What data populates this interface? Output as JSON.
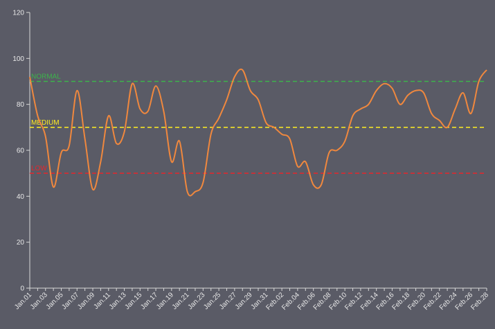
{
  "chart_data": {
    "type": "line",
    "categories": [
      "Jan.01",
      null,
      "Jan.03",
      null,
      "Jan.05",
      null,
      "Jan.07",
      null,
      "Jan.09",
      null,
      "Jan.11",
      null,
      "Jan.13",
      null,
      "Jan.15",
      null,
      "Jan.17",
      null,
      "Jan.19",
      null,
      "Jan.21",
      null,
      "Jan.23",
      null,
      "Jan.25",
      null,
      "Jan.27",
      null,
      "Jan.29",
      null,
      "Jan.31",
      null,
      "Feb.02",
      null,
      "Feb.04",
      null,
      "Feb.06",
      null,
      "Feb.08",
      null,
      "Feb.10",
      null,
      "Feb.12",
      null,
      "Feb.14",
      null,
      "Feb.16",
      null,
      "Feb.18",
      null,
      "Feb.20",
      null,
      "Feb.22",
      null,
      "Feb.24",
      null,
      "Feb.26",
      null,
      "Feb.28"
    ],
    "series": [
      {
        "color": "#f0883e",
        "values": [
          92,
          75,
          66,
          44,
          59,
          62,
          86,
          65,
          43,
          55,
          75,
          63,
          68,
          89,
          78,
          77,
          88,
          77,
          55,
          64,
          42,
          42,
          46,
          67,
          74,
          82,
          92,
          95,
          86,
          82,
          72,
          70,
          67,
          65,
          53,
          55,
          45,
          45,
          59,
          60,
          64,
          75,
          78,
          80,
          86,
          89,
          87,
          80,
          84,
          86,
          85,
          76,
          73,
          70,
          78,
          85,
          76,
          90,
          95
        ]
      }
    ],
    "thresholds": [
      {
        "label": "NORMAL",
        "value": 90,
        "color": "#3cb44b"
      },
      {
        "label": "MEDIUM",
        "value": 70,
        "color": "#ffee22"
      },
      {
        "label": "LOW",
        "value": 50,
        "color": "#e6262c"
      }
    ],
    "ylim": [
      0,
      120
    ],
    "yticks": [
      0,
      20,
      40,
      60,
      80,
      100,
      120
    ]
  }
}
